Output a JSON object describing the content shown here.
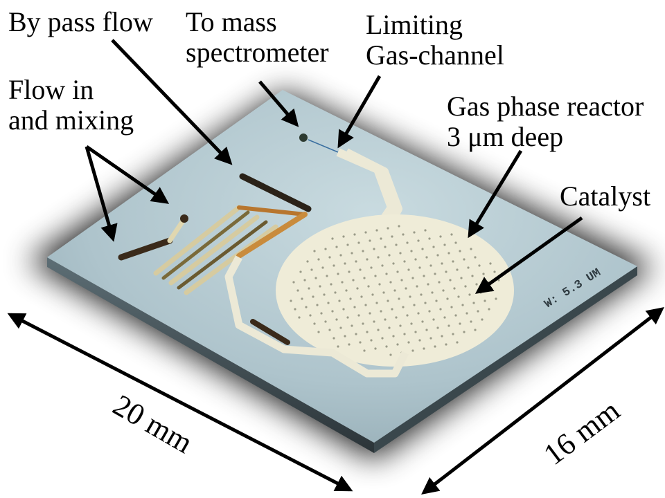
{
  "labels": {
    "bypass_flow": "By pass flow",
    "to_mass_line1": "To mass",
    "to_mass_line2": "spectrometer",
    "limiting_line1": "Limiting",
    "limiting_line2": "Gas-channel",
    "flow_in_line1": "Flow in",
    "flow_in_line2": "and mixing",
    "reactor_line1": "Gas phase reactor",
    "reactor_line2": "3 μm deep",
    "catalyst": "Catalyst"
  },
  "dimensions": {
    "width": "20 mm",
    "depth": "16 mm"
  },
  "chip_stamp": "W: 5.3 UM",
  "colors": {
    "chip_surface": "#a9c0c8",
    "channel_fill": "#ece9d6",
    "channel_dark": "#3a2a1a",
    "channel_copper": "#b8762e",
    "shadow": "#000000"
  }
}
